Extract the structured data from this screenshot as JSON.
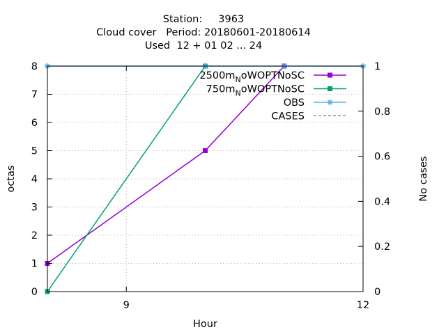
{
  "chart_data": {
    "type": "line",
    "title_lines": [
      "Station:     3963",
      "Cloud cover   Period: 20180601-20180614",
      "Used  12 + 01 02 ... 24"
    ],
    "xlabel": "Hour",
    "ylabel": "octas",
    "y2label": "No cases",
    "xlim": [
      8,
      12
    ],
    "ylim": [
      0,
      8
    ],
    "y2lim": [
      0,
      1
    ],
    "xticks": [
      9,
      12
    ],
    "yticks": [
      0,
      1,
      2,
      3,
      4,
      5,
      6,
      7,
      8
    ],
    "y2ticks": [
      0,
      0.2,
      0.4,
      0.6,
      0.8,
      1
    ],
    "grid": true,
    "legend_position": "top-right",
    "series": [
      {
        "name": "2500m",
        "name_sub": "N",
        "name_suffix": "oWOPTNoSC",
        "color": "#9400d3",
        "axis": "y",
        "x": [
          8,
          10,
          11
        ],
        "y": [
          1,
          5,
          8
        ],
        "marker": "square",
        "dashed": false
      },
      {
        "name": "750m",
        "name_sub": "N",
        "name_suffix": "oWOPTNoSC",
        "color": "#009e73",
        "axis": "y",
        "x": [
          8,
          10
        ],
        "y": [
          0,
          8
        ],
        "marker": "square",
        "dashed": false
      },
      {
        "name": "OBS",
        "name_sub": "",
        "name_suffix": "",
        "color": "#56b4e9",
        "axis": "y",
        "x": [
          8,
          10,
          11,
          12
        ],
        "y": [
          8,
          8,
          8,
          8
        ],
        "marker": "star",
        "dashed": false
      },
      {
        "name": "CASES",
        "name_sub": "",
        "name_suffix": "",
        "color": "#000000",
        "axis": "y2",
        "x": [
          8,
          12
        ],
        "y": [
          1,
          1
        ],
        "marker": "none",
        "dashed": true
      }
    ]
  }
}
